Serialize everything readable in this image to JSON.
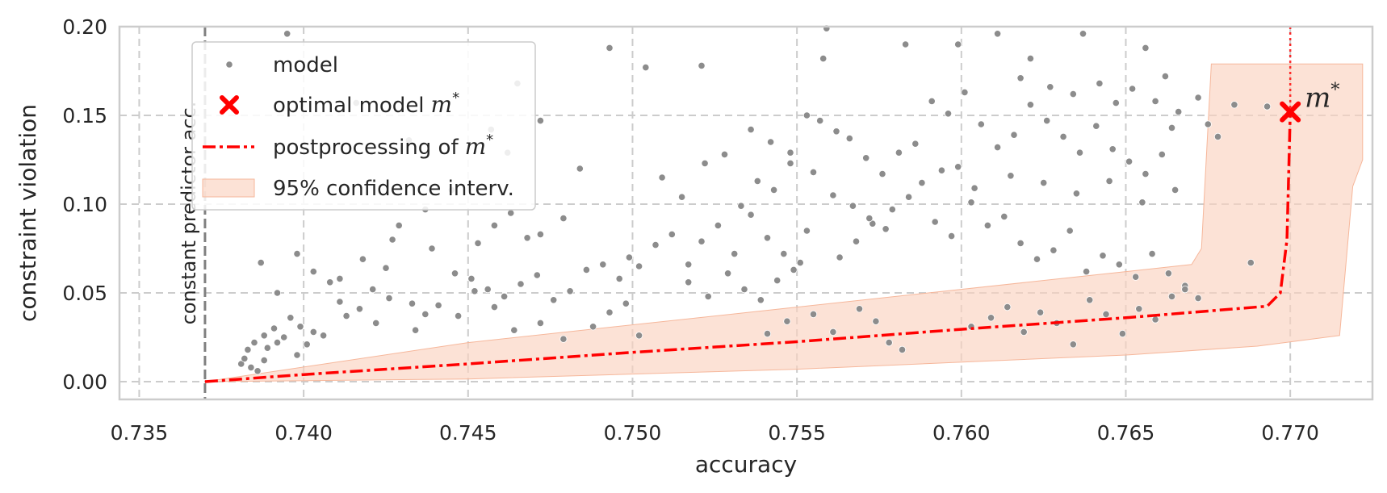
{
  "chart_data": {
    "type": "scatter",
    "xlabel": "accuracy",
    "ylabel": "constraint violation",
    "xlim": [
      0.7344,
      0.7725
    ],
    "ylim": [
      -0.01,
      0.2
    ],
    "xticks": [
      "0.735",
      "0.740",
      "0.745",
      "0.750",
      "0.755",
      "0.760",
      "0.765",
      "0.770"
    ],
    "yticks": [
      "0.00",
      "0.05",
      "0.10",
      "0.15",
      "0.20"
    ],
    "grid": true,
    "grid_style": "dashed",
    "legend_position": "top-left",
    "colors": {
      "model": "#8c8c8c",
      "optimal": "#ff0000",
      "postprocessing": "#ff0000",
      "confidence": "#fbd3c0",
      "constant_line": "#808080"
    },
    "legend": [
      {
        "key": "model",
        "label": "model"
      },
      {
        "key": "optimal",
        "label": "optimal model",
        "label_math": "m",
        "label_sup": "*"
      },
      {
        "key": "postprocessing",
        "label": "postprocessing of",
        "label_math": "m",
        "label_sup": "*"
      },
      {
        "key": "confidence",
        "label": "95% confidence interv."
      }
    ],
    "constant_predictor": {
      "x": 0.737,
      "label": "constant predictor acc."
    },
    "optimal_model": {
      "x": 0.77,
      "y": 0.152,
      "label_math": "m",
      "label_sup": "*"
    },
    "postprocessing_curve": [
      [
        0.737,
        0.0
      ],
      [
        0.74,
        0.004
      ],
      [
        0.745,
        0.01
      ],
      [
        0.75,
        0.0165
      ],
      [
        0.755,
        0.0225
      ],
      [
        0.76,
        0.0295
      ],
      [
        0.765,
        0.036
      ],
      [
        0.7693,
        0.0425
      ],
      [
        0.7697,
        0.05
      ],
      [
        0.7699,
        0.08
      ],
      [
        0.77,
        0.152
      ]
    ],
    "confidence_band": {
      "upper": [
        [
          0.737,
          0.0
        ],
        [
          0.745,
          0.022
        ],
        [
          0.755,
          0.042
        ],
        [
          0.765,
          0.062
        ],
        [
          0.767,
          0.066
        ],
        [
          0.7673,
          0.075
        ],
        [
          0.7676,
          0.179
        ],
        [
          0.7722,
          0.179
        ]
      ],
      "lower": [
        [
          0.7722,
          0.125
        ],
        [
          0.7719,
          0.11
        ],
        [
          0.7715,
          0.026
        ],
        [
          0.769,
          0.02
        ],
        [
          0.765,
          0.015
        ],
        [
          0.755,
          0.007
        ],
        [
          0.745,
          0.0015
        ],
        [
          0.737,
          0.0
        ]
      ]
    },
    "model_points": [
      [
        0.7381,
        0.01
      ],
      [
        0.7382,
        0.013
      ],
      [
        0.7384,
        0.008
      ],
      [
        0.7386,
        0.006
      ],
      [
        0.7388,
        0.012
      ],
      [
        0.7385,
        0.022
      ],
      [
        0.7389,
        0.019
      ],
      [
        0.7391,
        0.03
      ],
      [
        0.7394,
        0.025
      ],
      [
        0.7396,
        0.036
      ],
      [
        0.7398,
        0.015
      ],
      [
        0.7401,
        0.021
      ],
      [
        0.7403,
        0.028
      ],
      [
        0.7392,
        0.05
      ],
      [
        0.7398,
        0.072
      ],
      [
        0.7387,
        0.067
      ],
      [
        0.7408,
        0.056
      ],
      [
        0.7411,
        0.045
      ],
      [
        0.7417,
        0.041
      ],
      [
        0.7421,
        0.052
      ],
      [
        0.7426,
        0.047
      ],
      [
        0.7433,
        0.044
      ],
      [
        0.7437,
        0.038
      ],
      [
        0.7441,
        0.043
      ],
      [
        0.7446,
        0.061
      ],
      [
        0.7451,
        0.058
      ],
      [
        0.7456,
        0.052
      ],
      [
        0.7461,
        0.048
      ],
      [
        0.7466,
        0.055
      ],
      [
        0.7471,
        0.06
      ],
      [
        0.7476,
        0.046
      ],
      [
        0.7481,
        0.051
      ],
      [
        0.7427,
        0.08
      ],
      [
        0.7439,
        0.075
      ],
      [
        0.7453,
        0.078
      ],
      [
        0.7458,
        0.088
      ],
      [
        0.7463,
        0.095
      ],
      [
        0.7468,
        0.081
      ],
      [
        0.7472,
        0.083
      ],
      [
        0.7479,
        0.092
      ],
      [
        0.7486,
        0.063
      ],
      [
        0.7491,
        0.066
      ],
      [
        0.7496,
        0.058
      ],
      [
        0.7499,
        0.07
      ],
      [
        0.7502,
        0.065
      ],
      [
        0.7507,
        0.077
      ],
      [
        0.7512,
        0.083
      ],
      [
        0.7517,
        0.066
      ],
      [
        0.7521,
        0.079
      ],
      [
        0.7526,
        0.088
      ],
      [
        0.7531,
        0.072
      ],
      [
        0.7536,
        0.094
      ],
      [
        0.7541,
        0.081
      ],
      [
        0.7546,
        0.072
      ],
      [
        0.7549,
        0.063
      ],
      [
        0.7553,
        0.085
      ],
      [
        0.7509,
        0.115
      ],
      [
        0.7515,
        0.104
      ],
      [
        0.7522,
        0.123
      ],
      [
        0.7528,
        0.128
      ],
      [
        0.7533,
        0.099
      ],
      [
        0.7538,
        0.113
      ],
      [
        0.7543,
        0.108
      ],
      [
        0.7548,
        0.123
      ],
      [
        0.7553,
        0.15
      ],
      [
        0.7557,
        0.147
      ],
      [
        0.7562,
        0.141
      ],
      [
        0.7566,
        0.137
      ],
      [
        0.7571,
        0.126
      ],
      [
        0.7576,
        0.117
      ],
      [
        0.7581,
        0.129
      ],
      [
        0.7586,
        0.134
      ],
      [
        0.7591,
        0.158
      ],
      [
        0.7596,
        0.151
      ],
      [
        0.7601,
        0.163
      ],
      [
        0.7606,
        0.145
      ],
      [
        0.7611,
        0.132
      ],
      [
        0.7616,
        0.139
      ],
      [
        0.7621,
        0.156
      ],
      [
        0.7626,
        0.147
      ],
      [
        0.7631,
        0.138
      ],
      [
        0.7636,
        0.129
      ],
      [
        0.7641,
        0.144
      ],
      [
        0.7646,
        0.131
      ],
      [
        0.7651,
        0.124
      ],
      [
        0.7656,
        0.117
      ],
      [
        0.7661,
        0.128
      ],
      [
        0.7666,
        0.152
      ],
      [
        0.7592,
        0.09
      ],
      [
        0.7597,
        0.082
      ],
      [
        0.7603,
        0.101
      ],
      [
        0.7608,
        0.088
      ],
      [
        0.7613,
        0.093
      ],
      [
        0.7618,
        0.078
      ],
      [
        0.7623,
        0.069
      ],
      [
        0.7628,
        0.074
      ],
      [
        0.7633,
        0.085
      ],
      [
        0.7638,
        0.062
      ],
      [
        0.7643,
        0.071
      ],
      [
        0.7648,
        0.066
      ],
      [
        0.7653,
        0.059
      ],
      [
        0.7658,
        0.072
      ],
      [
        0.7663,
        0.061
      ],
      [
        0.7668,
        0.054
      ],
      [
        0.7603,
        0.031
      ],
      [
        0.7609,
        0.036
      ],
      [
        0.7614,
        0.042
      ],
      [
        0.7619,
        0.028
      ],
      [
        0.7624,
        0.039
      ],
      [
        0.7629,
        0.033
      ],
      [
        0.7634,
        0.021
      ],
      [
        0.7639,
        0.046
      ],
      [
        0.7644,
        0.038
      ],
      [
        0.7649,
        0.027
      ],
      [
        0.7654,
        0.041
      ],
      [
        0.7659,
        0.035
      ],
      [
        0.7664,
        0.048
      ],
      [
        0.7668,
        0.052
      ],
      [
        0.7672,
        0.047
      ],
      [
        0.7688,
        0.067
      ],
      [
        0.7574,
        0.034
      ],
      [
        0.7569,
        0.041
      ],
      [
        0.7578,
        0.022
      ],
      [
        0.7582,
        0.018
      ],
      [
        0.7561,
        0.028
      ],
      [
        0.7555,
        0.038
      ],
      [
        0.7547,
        0.034
      ],
      [
        0.7541,
        0.027
      ],
      [
        0.7395,
        0.196
      ],
      [
        0.7493,
        0.188
      ],
      [
        0.7504,
        0.177
      ],
      [
        0.7521,
        0.178
      ],
      [
        0.7558,
        0.182
      ],
      [
        0.7559,
        0.199
      ],
      [
        0.7583,
        0.19
      ],
      [
        0.7599,
        0.19
      ],
      [
        0.7611,
        0.196
      ],
      [
        0.7621,
        0.182
      ],
      [
        0.7637,
        0.196
      ],
      [
        0.7656,
        0.188
      ],
      [
        0.7662,
        0.172
      ],
      [
        0.7683,
        0.156
      ],
      [
        0.7693,
        0.155
      ],
      [
        0.7672,
        0.16
      ],
      [
        0.7416,
        0.157
      ],
      [
        0.7432,
        0.136
      ],
      [
        0.7465,
        0.168
      ],
      [
        0.7472,
        0.147
      ],
      [
        0.7484,
        0.12
      ],
      [
        0.7457,
        0.142
      ],
      [
        0.7462,
        0.129
      ],
      [
        0.7445,
        0.108
      ],
      [
        0.7437,
        0.097
      ],
      [
        0.7429,
        0.088
      ],
      [
        0.7403,
        0.062
      ],
      [
        0.7411,
        0.058
      ],
      [
        0.7418,
        0.069
      ],
      [
        0.7425,
        0.064
      ],
      [
        0.7452,
        0.051
      ],
      [
        0.7447,
        0.037
      ],
      [
        0.7458,
        0.042
      ],
      [
        0.7464,
        0.029
      ],
      [
        0.7472,
        0.033
      ],
      [
        0.7479,
        0.024
      ],
      [
        0.7488,
        0.031
      ],
      [
        0.7493,
        0.039
      ],
      [
        0.7498,
        0.044
      ],
      [
        0.7502,
        0.026
      ],
      [
        0.7517,
        0.056
      ],
      [
        0.7523,
        0.048
      ],
      [
        0.7529,
        0.061
      ],
      [
        0.7534,
        0.052
      ],
      [
        0.7539,
        0.046
      ],
      [
        0.7544,
        0.057
      ],
      [
        0.7551,
        0.067
      ],
      [
        0.7563,
        0.07
      ],
      [
        0.7568,
        0.079
      ],
      [
        0.7573,
        0.089
      ],
      [
        0.7579,
        0.097
      ],
      [
        0.7584,
        0.104
      ],
      [
        0.7588,
        0.112
      ],
      [
        0.7594,
        0.119
      ],
      [
        0.7599,
        0.121
      ],
      [
        0.7604,
        0.109
      ],
      [
        0.7615,
        0.116
      ],
      [
        0.7625,
        0.112
      ],
      [
        0.7635,
        0.106
      ],
      [
        0.7645,
        0.113
      ],
      [
        0.7655,
        0.101
      ],
      [
        0.7665,
        0.108
      ],
      [
        0.7675,
        0.145
      ],
      [
        0.7678,
        0.138
      ],
      [
        0.7422,
        0.033
      ],
      [
        0.7434,
        0.029
      ],
      [
        0.7413,
        0.037
      ],
      [
        0.7406,
        0.026
      ],
      [
        0.7399,
        0.031
      ],
      [
        0.7392,
        0.022
      ],
      [
        0.7388,
        0.026
      ],
      [
        0.7383,
        0.018
      ],
      [
        0.7536,
        0.142
      ],
      [
        0.7542,
        0.135
      ],
      [
        0.7548,
        0.129
      ],
      [
        0.7555,
        0.118
      ],
      [
        0.7561,
        0.105
      ],
      [
        0.7567,
        0.099
      ],
      [
        0.7572,
        0.092
      ],
      [
        0.7577,
        0.086
      ],
      [
        0.7618,
        0.171
      ],
      [
        0.7627,
        0.166
      ],
      [
        0.7634,
        0.162
      ],
      [
        0.7642,
        0.168
      ],
      [
        0.7647,
        0.157
      ],
      [
        0.7652,
        0.165
      ],
      [
        0.7659,
        0.158
      ],
      [
        0.7664,
        0.143
      ]
    ]
  }
}
